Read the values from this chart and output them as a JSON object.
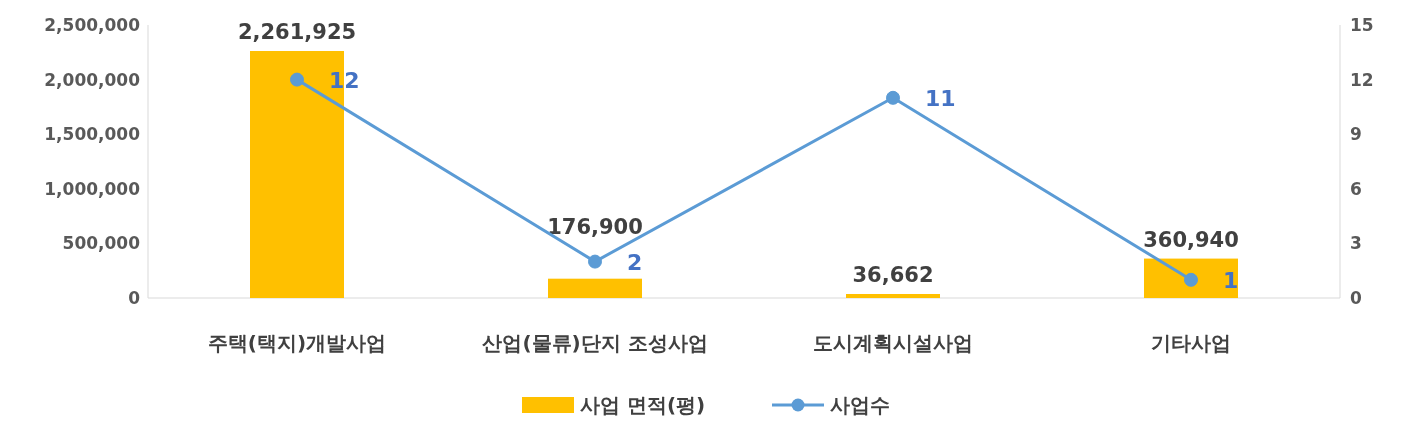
{
  "chart_data": {
    "type": "bar",
    "categories": [
      "주택(택지)개발사업",
      "산업(물류)단지 조성사업",
      "도시계획시설사업",
      "기타사업"
    ],
    "series": [
      {
        "name": "사업 면적(평)",
        "color": "#ffc000",
        "values": [
          2261925,
          176900,
          36662,
          360940
        ],
        "value_labels": [
          "2,261,925",
          "176,900",
          "36,662",
          "360,940"
        ]
      },
      {
        "name": "사업수",
        "type": "line",
        "axis": "y2",
        "color": "#5b9bd5",
        "marker": "circle",
        "values": [
          12,
          2,
          11,
          1
        ],
        "value_labels": [
          "12",
          "2",
          "11",
          "1"
        ]
      }
    ],
    "ylim": [
      0,
      2500000
    ],
    "yticks": [
      0,
      {
        "value": 500000,
        "label": "500,000"
      },
      {
        "value": 1000000,
        "label": "1,000,000"
      },
      {
        "value": 1500000,
        "label": "1,500,000"
      },
      {
        "value": 2000000,
        "label": "2,000,000"
      },
      {
        "value": 2500000,
        "label": "2,500,000"
      }
    ],
    "y2lim": [
      0,
      15
    ],
    "y2ticks": [
      0,
      3,
      6,
      9,
      12,
      15
    ],
    "legend": "bottom",
    "grid": false
  }
}
